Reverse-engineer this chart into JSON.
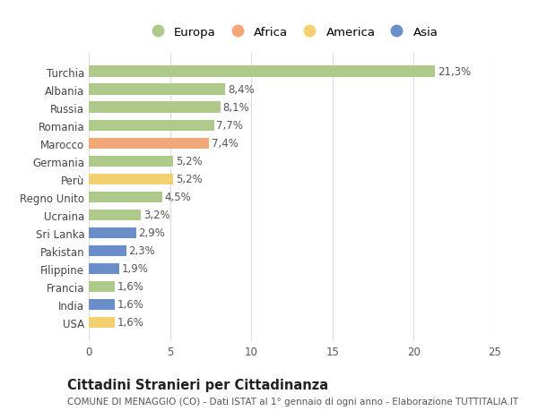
{
  "countries": [
    "Turchia",
    "Albania",
    "Russia",
    "Romania",
    "Marocco",
    "Germania",
    "Perù",
    "Regno Unito",
    "Ucraina",
    "Sri Lanka",
    "Pakistan",
    "Filippine",
    "Francia",
    "India",
    "USA"
  ],
  "values": [
    21.3,
    8.4,
    8.1,
    7.7,
    7.4,
    5.2,
    5.2,
    4.5,
    3.2,
    2.9,
    2.3,
    1.9,
    1.6,
    1.6,
    1.6
  ],
  "labels": [
    "21,3%",
    "8,4%",
    "8,1%",
    "7,7%",
    "7,4%",
    "5,2%",
    "5,2%",
    "4,5%",
    "3,2%",
    "2,9%",
    "2,3%",
    "1,9%",
    "1,6%",
    "1,6%",
    "1,6%"
  ],
  "colors": [
    "#aec98a",
    "#aec98a",
    "#aec98a",
    "#aec98a",
    "#f0a878",
    "#aec98a",
    "#f5d070",
    "#aec98a",
    "#aec98a",
    "#6a8fc8",
    "#6a8fc8",
    "#6a8fc8",
    "#aec98a",
    "#6a8fc8",
    "#f5d070"
  ],
  "legend": [
    {
      "label": "Europa",
      "color": "#aec98a"
    },
    {
      "label": "Africa",
      "color": "#f0a878"
    },
    {
      "label": "America",
      "color": "#f5d070"
    },
    {
      "label": "Asia",
      "color": "#6a8fc8"
    }
  ],
  "xlim": [
    0,
    25
  ],
  "xticks": [
    0,
    5,
    10,
    15,
    20,
    25
  ],
  "title": "Cittadini Stranieri per Cittadinanza",
  "subtitle": "COMUNE DI MENAGGIO (CO) - Dati ISTAT al 1° gennaio di ogni anno - Elaborazione TUTTITALIA.IT",
  "bg_color": "#ffffff",
  "grid_color": "#dddddd",
  "bar_height": 0.62,
  "label_fontsize": 8.5,
  "title_fontsize": 10.5,
  "subtitle_fontsize": 7.5,
  "tick_fontsize": 8.5,
  "legend_fontsize": 9.5
}
